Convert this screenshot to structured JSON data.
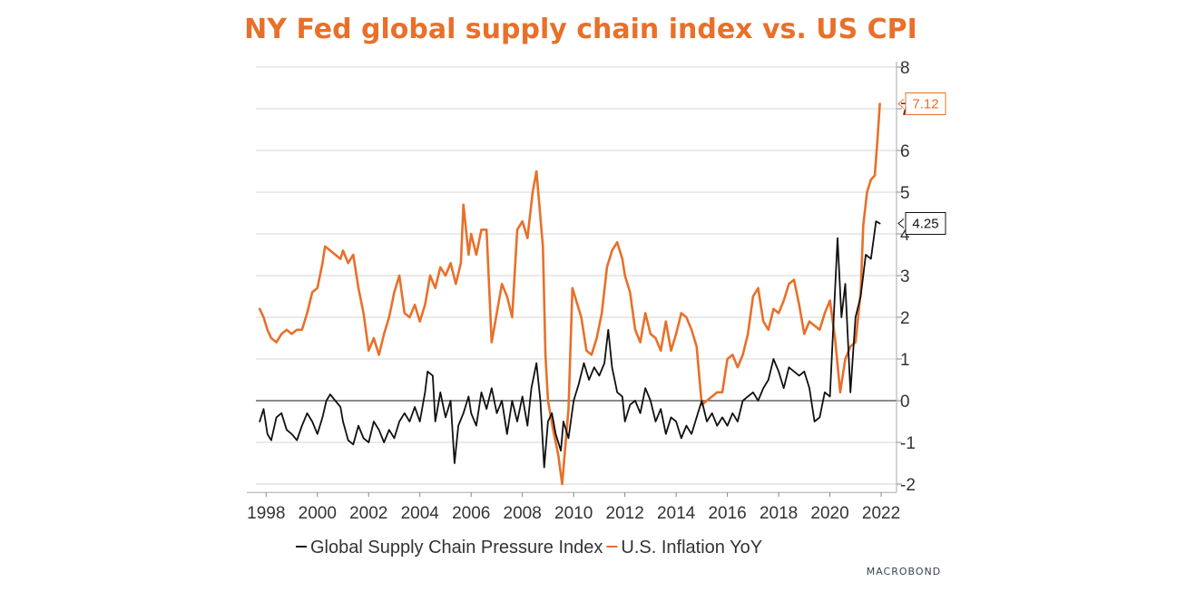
{
  "chart_data": {
    "type": "line",
    "title": "NY Fed global supply chain index vs. US CPI",
    "brand": "MACROBOND",
    "xlim": [
      1997.6,
      2022.6
    ],
    "ylim": [
      -2.2,
      8.2
    ],
    "x_ticks": [
      "1998",
      "2000",
      "2002",
      "2004",
      "2006",
      "2008",
      "2010",
      "2012",
      "2014",
      "2016",
      "2018",
      "2020",
      "2022"
    ],
    "y_ticks": [
      "8",
      "7",
      "6",
      "5",
      "4",
      "3",
      "2",
      "1",
      "0",
      "-1",
      "-2"
    ],
    "grid": true,
    "legend_placement": "bottom",
    "colors": {
      "gscpi": "#111111",
      "cpi": "#e8702a",
      "title": "#e8702a",
      "zero_line": "#444444"
    },
    "series": [
      {
        "key": "gscpi",
        "name": "Global Supply Chain Pressure Index",
        "last_value_label": "4.25",
        "points": [
          [
            1997.75,
            -0.5
          ],
          [
            1997.9,
            -0.2
          ],
          [
            1998.05,
            -0.8
          ],
          [
            1998.2,
            -0.95
          ],
          [
            1998.4,
            -0.4
          ],
          [
            1998.6,
            -0.3
          ],
          [
            1998.8,
            -0.7
          ],
          [
            1999.0,
            -0.8
          ],
          [
            1999.2,
            -0.95
          ],
          [
            1999.4,
            -0.6
          ],
          [
            1999.6,
            -0.3
          ],
          [
            1999.8,
            -0.5
          ],
          [
            2000.0,
            -0.8
          ],
          [
            2000.2,
            -0.4
          ],
          [
            2000.35,
            0.0
          ],
          [
            2000.5,
            0.15
          ],
          [
            2000.7,
            0.0
          ],
          [
            2000.9,
            -0.15
          ],
          [
            2001.0,
            -0.5
          ],
          [
            2001.2,
            -0.95
          ],
          [
            2001.4,
            -1.05
          ],
          [
            2001.6,
            -0.6
          ],
          [
            2001.8,
            -0.9
          ],
          [
            2002.0,
            -1.0
          ],
          [
            2002.2,
            -0.5
          ],
          [
            2002.4,
            -0.7
          ],
          [
            2002.6,
            -1.0
          ],
          [
            2002.8,
            -0.7
          ],
          [
            2003.0,
            -0.9
          ],
          [
            2003.2,
            -0.5
          ],
          [
            2003.4,
            -0.3
          ],
          [
            2003.6,
            -0.5
          ],
          [
            2003.8,
            -0.15
          ],
          [
            2004.0,
            -0.5
          ],
          [
            2004.2,
            0.2
          ],
          [
            2004.3,
            0.7
          ],
          [
            2004.5,
            0.6
          ],
          [
            2004.6,
            -0.5
          ],
          [
            2004.8,
            0.2
          ],
          [
            2005.0,
            -0.4
          ],
          [
            2005.2,
            0.0
          ],
          [
            2005.35,
            -1.5
          ],
          [
            2005.5,
            -0.6
          ],
          [
            2005.7,
            -0.3
          ],
          [
            2005.9,
            0.1
          ],
          [
            2006.0,
            -0.3
          ],
          [
            2006.2,
            -0.6
          ],
          [
            2006.4,
            0.2
          ],
          [
            2006.6,
            -0.2
          ],
          [
            2006.8,
            0.3
          ],
          [
            2007.0,
            -0.3
          ],
          [
            2007.2,
            0.0
          ],
          [
            2007.4,
            -0.8
          ],
          [
            2007.6,
            0.0
          ],
          [
            2007.8,
            -0.5
          ],
          [
            2008.0,
            0.1
          ],
          [
            2008.2,
            -0.6
          ],
          [
            2008.35,
            0.3
          ],
          [
            2008.55,
            0.9
          ],
          [
            2008.7,
            0.0
          ],
          [
            2008.85,
            -1.6
          ],
          [
            2009.0,
            -0.5
          ],
          [
            2009.15,
            -0.3
          ],
          [
            2009.3,
            -0.8
          ],
          [
            2009.5,
            -1.2
          ],
          [
            2009.6,
            -0.5
          ],
          [
            2009.8,
            -0.9
          ],
          [
            2010.0,
            0.0
          ],
          [
            2010.2,
            0.4
          ],
          [
            2010.4,
            0.9
          ],
          [
            2010.6,
            0.5
          ],
          [
            2010.8,
            0.8
          ],
          [
            2011.0,
            0.6
          ],
          [
            2011.2,
            0.9
          ],
          [
            2011.35,
            1.7
          ],
          [
            2011.5,
            0.8
          ],
          [
            2011.7,
            0.2
          ],
          [
            2011.9,
            0.1
          ],
          [
            2012.0,
            -0.5
          ],
          [
            2012.2,
            -0.1
          ],
          [
            2012.4,
            0.0
          ],
          [
            2012.6,
            -0.3
          ],
          [
            2012.8,
            0.3
          ],
          [
            2013.0,
            0.0
          ],
          [
            2013.2,
            -0.5
          ],
          [
            2013.4,
            -0.2
          ],
          [
            2013.6,
            -0.8
          ],
          [
            2013.8,
            -0.4
          ],
          [
            2014.0,
            -0.5
          ],
          [
            2014.2,
            -0.9
          ],
          [
            2014.4,
            -0.6
          ],
          [
            2014.6,
            -0.8
          ],
          [
            2014.8,
            -0.4
          ],
          [
            2015.0,
            0.0
          ],
          [
            2015.2,
            -0.5
          ],
          [
            2015.4,
            -0.3
          ],
          [
            2015.6,
            -0.6
          ],
          [
            2015.8,
            -0.4
          ],
          [
            2016.0,
            -0.6
          ],
          [
            2016.2,
            -0.3
          ],
          [
            2016.4,
            -0.5
          ],
          [
            2016.6,
            0.0
          ],
          [
            2016.8,
            0.1
          ],
          [
            2017.0,
            0.2
          ],
          [
            2017.2,
            0.0
          ],
          [
            2017.4,
            0.3
          ],
          [
            2017.6,
            0.5
          ],
          [
            2017.8,
            1.0
          ],
          [
            2018.0,
            0.7
          ],
          [
            2018.2,
            0.3
          ],
          [
            2018.4,
            0.8
          ],
          [
            2018.6,
            0.7
          ],
          [
            2018.8,
            0.6
          ],
          [
            2019.0,
            0.7
          ],
          [
            2019.2,
            0.3
          ],
          [
            2019.4,
            -0.5
          ],
          [
            2019.6,
            -0.4
          ],
          [
            2019.8,
            0.2
          ],
          [
            2020.0,
            0.1
          ],
          [
            2020.15,
            2.0
          ],
          [
            2020.3,
            3.9
          ],
          [
            2020.45,
            2.0
          ],
          [
            2020.6,
            2.8
          ],
          [
            2020.8,
            0.2
          ],
          [
            2021.0,
            2.0
          ],
          [
            2021.2,
            2.5
          ],
          [
            2021.4,
            3.5
          ],
          [
            2021.6,
            3.4
          ],
          [
            2021.8,
            4.3
          ],
          [
            2021.95,
            4.25
          ]
        ]
      },
      {
        "key": "cpi",
        "name": "U.S. Inflation YoY",
        "last_value_label": "7.12",
        "points": [
          [
            1997.75,
            2.2
          ],
          [
            1997.9,
            2.0
          ],
          [
            1998.05,
            1.7
          ],
          [
            1998.2,
            1.5
          ],
          [
            1998.4,
            1.4
          ],
          [
            1998.6,
            1.6
          ],
          [
            1998.8,
            1.7
          ],
          [
            1999.0,
            1.6
          ],
          [
            1999.2,
            1.7
          ],
          [
            1999.4,
            1.7
          ],
          [
            1999.6,
            2.1
          ],
          [
            1999.8,
            2.6
          ],
          [
            2000.0,
            2.7
          ],
          [
            2000.2,
            3.3
          ],
          [
            2000.3,
            3.7
          ],
          [
            2000.5,
            3.6
          ],
          [
            2000.7,
            3.5
          ],
          [
            2000.9,
            3.4
          ],
          [
            2001.0,
            3.6
          ],
          [
            2001.2,
            3.3
          ],
          [
            2001.4,
            3.5
          ],
          [
            2001.6,
            2.7
          ],
          [
            2001.8,
            2.1
          ],
          [
            2002.0,
            1.2
          ],
          [
            2002.2,
            1.5
          ],
          [
            2002.4,
            1.1
          ],
          [
            2002.6,
            1.6
          ],
          [
            2002.8,
            2.0
          ],
          [
            2003.0,
            2.6
          ],
          [
            2003.2,
            3.0
          ],
          [
            2003.4,
            2.1
          ],
          [
            2003.6,
            2.0
          ],
          [
            2003.8,
            2.3
          ],
          [
            2004.0,
            1.9
          ],
          [
            2004.2,
            2.3
          ],
          [
            2004.4,
            3.0
          ],
          [
            2004.6,
            2.7
          ],
          [
            2004.8,
            3.2
          ],
          [
            2005.0,
            3.0
          ],
          [
            2005.2,
            3.3
          ],
          [
            2005.4,
            2.8
          ],
          [
            2005.6,
            3.3
          ],
          [
            2005.7,
            4.7
          ],
          [
            2005.9,
            3.5
          ],
          [
            2006.0,
            4.0
          ],
          [
            2006.2,
            3.5
          ],
          [
            2006.4,
            4.1
          ],
          [
            2006.6,
            4.1
          ],
          [
            2006.8,
            1.4
          ],
          [
            2007.0,
            2.1
          ],
          [
            2007.2,
            2.8
          ],
          [
            2007.4,
            2.5
          ],
          [
            2007.6,
            2.0
          ],
          [
            2007.8,
            4.1
          ],
          [
            2008.0,
            4.3
          ],
          [
            2008.2,
            3.9
          ],
          [
            2008.4,
            5.0
          ],
          [
            2008.55,
            5.5
          ],
          [
            2008.8,
            3.7
          ],
          [
            2008.9,
            1.1
          ],
          [
            2009.0,
            0.0
          ],
          [
            2009.2,
            -0.7
          ],
          [
            2009.4,
            -1.3
          ],
          [
            2009.55,
            -2.0
          ],
          [
            2009.8,
            -0.2
          ],
          [
            2009.95,
            2.7
          ],
          [
            2010.1,
            2.4
          ],
          [
            2010.3,
            2.0
          ],
          [
            2010.5,
            1.2
          ],
          [
            2010.7,
            1.1
          ],
          [
            2010.9,
            1.5
          ],
          [
            2011.1,
            2.1
          ],
          [
            2011.3,
            3.2
          ],
          [
            2011.5,
            3.6
          ],
          [
            2011.7,
            3.8
          ],
          [
            2011.9,
            3.4
          ],
          [
            2012.0,
            3.0
          ],
          [
            2012.2,
            2.6
          ],
          [
            2012.4,
            1.7
          ],
          [
            2012.6,
            1.4
          ],
          [
            2012.8,
            2.1
          ],
          [
            2013.0,
            1.6
          ],
          [
            2013.2,
            1.5
          ],
          [
            2013.4,
            1.2
          ],
          [
            2013.6,
            1.9
          ],
          [
            2013.8,
            1.2
          ],
          [
            2014.0,
            1.6
          ],
          [
            2014.2,
            2.1
          ],
          [
            2014.4,
            2.0
          ],
          [
            2014.6,
            1.7
          ],
          [
            2014.8,
            1.3
          ],
          [
            2015.0,
            -0.1
          ],
          [
            2015.2,
            0.0
          ],
          [
            2015.4,
            0.1
          ],
          [
            2015.6,
            0.2
          ],
          [
            2015.8,
            0.2
          ],
          [
            2016.0,
            1.0
          ],
          [
            2016.2,
            1.1
          ],
          [
            2016.4,
            0.8
          ],
          [
            2016.6,
            1.1
          ],
          [
            2016.8,
            1.6
          ],
          [
            2017.0,
            2.5
          ],
          [
            2017.2,
            2.7
          ],
          [
            2017.4,
            1.9
          ],
          [
            2017.6,
            1.7
          ],
          [
            2017.8,
            2.2
          ],
          [
            2018.0,
            2.1
          ],
          [
            2018.2,
            2.4
          ],
          [
            2018.4,
            2.8
          ],
          [
            2018.6,
            2.9
          ],
          [
            2018.8,
            2.3
          ],
          [
            2019.0,
            1.6
          ],
          [
            2019.2,
            1.9
          ],
          [
            2019.4,
            1.8
          ],
          [
            2019.6,
            1.7
          ],
          [
            2019.8,
            2.1
          ],
          [
            2020.0,
            2.4
          ],
          [
            2020.2,
            1.5
          ],
          [
            2020.4,
            0.2
          ],
          [
            2020.6,
            1.0
          ],
          [
            2020.8,
            1.3
          ],
          [
            2021.0,
            1.4
          ],
          [
            2021.2,
            2.6
          ],
          [
            2021.3,
            4.2
          ],
          [
            2021.45,
            5.0
          ],
          [
            2021.6,
            5.3
          ],
          [
            2021.75,
            5.4
          ],
          [
            2021.85,
            6.2
          ],
          [
            2021.95,
            7.12
          ]
        ]
      }
    ]
  }
}
